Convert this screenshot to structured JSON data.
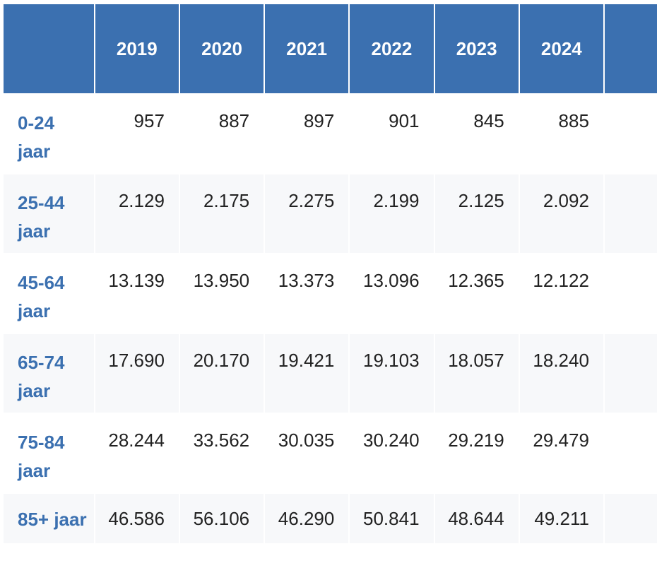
{
  "table": {
    "header": {
      "corner": "",
      "years": [
        "2019",
        "2020",
        "2021",
        "2022",
        "2023",
        "2024"
      ],
      "extra_partial": ""
    },
    "rows": [
      {
        "label": "0-24 jaar",
        "values": [
          "957",
          "887",
          "897",
          "901",
          "845",
          "885"
        ]
      },
      {
        "label": "25-44 jaar",
        "values": [
          "2.129",
          "2.175",
          "2.275",
          "2.199",
          "2.125",
          "2.092"
        ]
      },
      {
        "label": "45-64 jaar",
        "values": [
          "13.139",
          "13.950",
          "13.373",
          "13.096",
          "12.365",
          "12.122"
        ]
      },
      {
        "label": "65-74 jaar",
        "values": [
          "17.690",
          "20.170",
          "19.421",
          "19.103",
          "18.057",
          "18.240"
        ]
      },
      {
        "label": "75-84 jaar",
        "values": [
          "28.244",
          "33.562",
          "30.035",
          "30.240",
          "29.219",
          "29.479"
        ]
      },
      {
        "label": "85+ jaar",
        "values": [
          "46.586",
          "56.106",
          "46.290",
          "50.841",
          "48.644",
          "49.211"
        ]
      }
    ]
  },
  "colors": {
    "header_bg": "#3b70b0",
    "header_text": "#ffffff",
    "label_text": "#3b70b0",
    "value_text": "#222222",
    "shaded_row_bg": "#f7f8fa"
  }
}
